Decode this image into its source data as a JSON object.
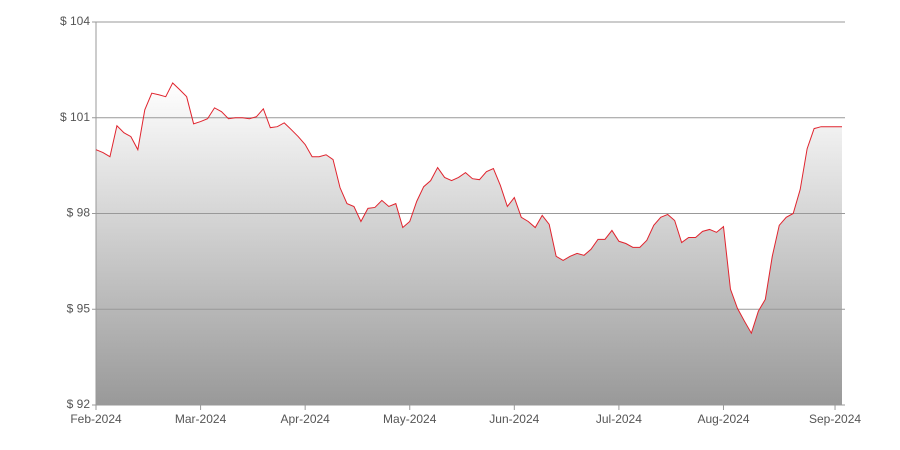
{
  "chart_data": {
    "type": "area",
    "categories": [
      "Feb-2024",
      null,
      null,
      null,
      null,
      null,
      null,
      null,
      null,
      null,
      null,
      null,
      null,
      null,
      null,
      "Mar-2024",
      null,
      null,
      null,
      null,
      null,
      null,
      null,
      null,
      null,
      null,
      null,
      null,
      null,
      null,
      "Apr-2024",
      null,
      null,
      null,
      null,
      null,
      null,
      null,
      null,
      null,
      null,
      null,
      null,
      null,
      null,
      "May-2024",
      null,
      null,
      null,
      null,
      null,
      null,
      null,
      null,
      null,
      null,
      null,
      null,
      null,
      null,
      "Jun-2024",
      null,
      null,
      null,
      null,
      null,
      null,
      null,
      null,
      null,
      null,
      null,
      null,
      null,
      null,
      "Jul-2024",
      null,
      null,
      null,
      null,
      null,
      null,
      null,
      null,
      null,
      null,
      null,
      null,
      null,
      null,
      "Aug-2024",
      null,
      null,
      null,
      null,
      null,
      null,
      null,
      null,
      null,
      null,
      null,
      null,
      null,
      null,
      null,
      "Sep-2024",
      null
    ],
    "values": [
      100.0,
      99.91,
      99.78,
      100.75,
      100.53,
      100.41,
      100.0,
      101.25,
      101.77,
      101.72,
      101.66,
      102.09,
      101.88,
      101.66,
      100.81,
      100.88,
      100.97,
      101.31,
      101.19,
      100.97,
      101.0,
      101.0,
      100.97,
      101.03,
      101.28,
      100.69,
      100.72,
      100.84,
      100.63,
      100.41,
      100.16,
      99.78,
      99.78,
      99.84,
      99.69,
      98.81,
      98.31,
      98.22,
      97.75,
      98.16,
      98.19,
      98.41,
      98.22,
      98.31,
      97.56,
      97.75,
      98.38,
      98.84,
      99.03,
      99.44,
      99.13,
      99.03,
      99.13,
      99.28,
      99.09,
      99.06,
      99.31,
      99.41,
      98.88,
      98.22,
      98.5,
      97.88,
      97.75,
      97.56,
      97.94,
      97.66,
      96.66,
      96.53,
      96.66,
      96.75,
      96.69,
      96.88,
      97.19,
      97.19,
      97.47,
      97.13,
      97.06,
      96.94,
      96.94,
      97.16,
      97.63,
      97.88,
      97.97,
      97.78,
      97.09,
      97.25,
      97.25,
      97.44,
      97.5,
      97.41,
      97.59,
      95.63,
      95.03,
      94.63,
      94.25,
      94.94,
      95.31,
      96.66,
      97.63,
      97.88,
      98.0,
      98.75,
      100.03,
      100.66,
      100.72,
      100.72,
      100.72,
      100.72
    ],
    "color": "#e0242e",
    "ylim": [
      92,
      104
    ],
    "yticks": [
      {
        "value": 92,
        "label": "$ 92"
      },
      {
        "value": 95,
        "label": "$ 95"
      },
      {
        "value": 98,
        "label": "$ 98"
      },
      {
        "value": 101,
        "label": "$ 101"
      },
      {
        "value": 104,
        "label": "$ 104"
      }
    ],
    "grid": true
  }
}
